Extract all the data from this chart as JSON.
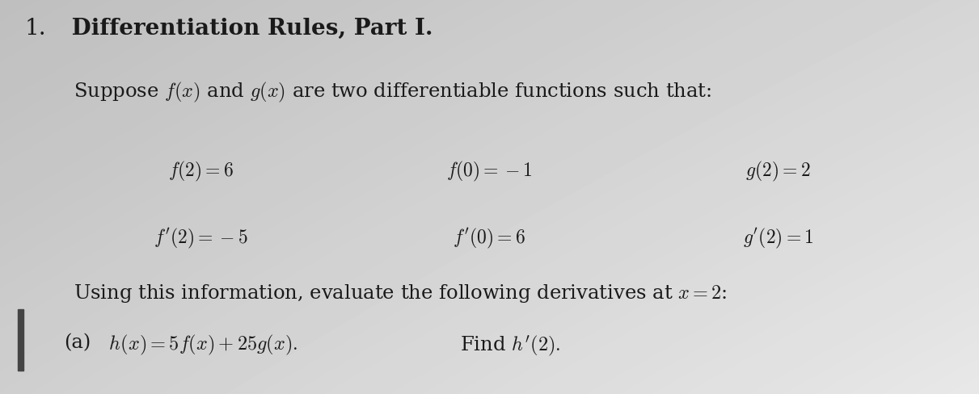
{
  "background_color": "#d8d8d8",
  "title_number": "1.",
  "title_text": " Differentiation Rules, Part I.",
  "subtitle": "Suppose $f(x)$ and $g(x)$ are two differentiable functions such that:",
  "col1_line1": "$f(2) = 6$",
  "col1_line2": "$f^{\\prime}(2) = -5$",
  "col2_line1": "$f(0) = -1$",
  "col2_line2": "$f^{\\prime}(0) = 6$",
  "col3_line1": "$g(2) = 2$",
  "col3_line2": "$g^{\\prime}(2) = 1$",
  "using_text": "Using this information, evaluate the following derivatives at $x = 2$:",
  "part_a_label": "(a)",
  "part_a_eq": " $h(x) = 5f(x) + 25g(x).$",
  "find_text": "Find $h^{\\prime}(2).$",
  "left_bar_color": "#444444",
  "text_color": "#1a1a1a",
  "title_fontsize": 20,
  "body_fontsize": 17.5,
  "eq_fontsize": 17,
  "figsize": [
    12.11,
    4.89
  ],
  "dpi": 100
}
